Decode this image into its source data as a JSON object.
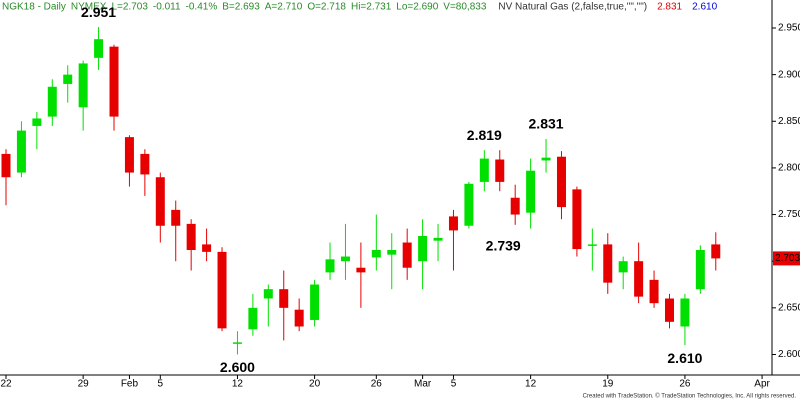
{
  "chart_data": {
    "type": "candlestick",
    "header": [
      "NGK18 - Daily",
      "NYMEX",
      "L=2.703",
      "-0.011",
      "-0.41%",
      "B=2.693",
      "A=2.710",
      "O=2.718",
      "Hi=2.731",
      "Lo=2.690",
      "V=80,833",
      "NV Natural Gas (2,false,true,\"\",\"\")",
      "2.831",
      "2.610"
    ],
    "categories": [
      "22",
      null,
      null,
      null,
      null,
      "29",
      null,
      null,
      "Feb",
      null,
      "5",
      null,
      null,
      null,
      null,
      "12",
      null,
      null,
      null,
      null,
      "20",
      null,
      null,
      null,
      "26",
      null,
      null,
      "Mar",
      null,
      "5",
      null,
      null,
      null,
      null,
      "12",
      null,
      null,
      null,
      null,
      "19",
      null,
      null,
      null,
      null,
      "26",
      null,
      null,
      null,
      null,
      "Apr"
    ],
    "open": [
      2.815,
      2.795,
      2.845,
      2.855,
      2.89,
      2.865,
      2.918,
      2.93,
      2.833,
      2.815,
      2.79,
      2.755,
      2.74,
      2.718,
      2.71,
      2.612,
      2.627,
      2.66,
      2.67,
      2.648,
      2.637,
      2.688,
      2.7,
      2.693,
      2.704,
      2.707,
      2.72,
      2.7,
      2.722,
      2.748,
      2.738,
      2.785,
      2.809,
      2.768,
      2.752,
      2.808,
      2.812,
      2.777,
      2.718,
      2.718,
      2.688,
      2.7,
      2.68,
      2.66,
      2.63,
      2.67,
      2.718,
      null,
      null,
      null
    ],
    "high": [
      2.82,
      2.85,
      2.86,
      2.895,
      2.91,
      2.915,
      2.951,
      2.932,
      2.835,
      2.82,
      2.795,
      2.765,
      2.745,
      2.735,
      2.715,
      2.625,
      2.665,
      2.675,
      2.69,
      2.66,
      2.68,
      2.72,
      2.74,
      2.72,
      2.75,
      2.73,
      2.735,
      2.745,
      2.74,
      2.755,
      2.785,
      2.819,
      2.819,
      2.782,
      2.81,
      2.831,
      2.818,
      2.78,
      2.735,
      2.73,
      2.705,
      2.72,
      2.69,
      2.665,
      2.665,
      2.717,
      2.731,
      null,
      null,
      null
    ],
    "low": [
      2.76,
      2.79,
      2.82,
      2.845,
      2.87,
      2.84,
      2.905,
      2.84,
      2.78,
      2.77,
      2.72,
      2.7,
      2.69,
      2.7,
      2.625,
      2.6,
      2.62,
      2.63,
      2.615,
      2.625,
      2.63,
      2.68,
      2.68,
      2.65,
      2.69,
      2.67,
      2.68,
      2.67,
      2.7,
      2.69,
      2.735,
      2.775,
      2.775,
      2.739,
      2.735,
      2.795,
      2.745,
      2.705,
      2.69,
      2.665,
      2.67,
      2.655,
      2.65,
      2.628,
      2.61,
      2.665,
      2.69,
      null,
      null,
      null
    ],
    "close": [
      2.79,
      2.84,
      2.853,
      2.887,
      2.9,
      2.912,
      2.938,
      2.855,
      2.795,
      2.793,
      2.738,
      2.738,
      2.712,
      2.71,
      2.628,
      2.613,
      2.65,
      2.67,
      2.65,
      2.63,
      2.675,
      2.702,
      2.705,
      2.688,
      2.712,
      2.712,
      2.693,
      2.727,
      2.725,
      2.733,
      2.783,
      2.81,
      2.785,
      2.75,
      2.797,
      2.811,
      2.758,
      2.713,
      2.718,
      2.677,
      2.7,
      2.662,
      2.655,
      2.635,
      2.66,
      2.712,
      2.703,
      null,
      null,
      null
    ],
    "up_color": "#00e000",
    "down_color": "#e60000",
    "annotations": [
      "2.951",
      "2.600",
      "2.819",
      "2.739",
      "2.831",
      "2.610"
    ],
    "last_price": 2.703,
    "ylim": [
      2.578,
      2.98
    ],
    "yticks": [
      {
        "value": 2.6,
        "label": "2.600"
      },
      {
        "value": 2.65,
        "label": "2.650"
      },
      {
        "value": 2.7,
        "label": "2.700"
      },
      {
        "value": 2.75,
        "label": "2.750"
      },
      {
        "value": 2.8,
        "label": "2.800"
      },
      {
        "value": 2.85,
        "label": "2.850"
      },
      {
        "value": 2.9,
        "label": "2.900"
      },
      {
        "value": 2.95,
        "label": "2.950"
      }
    ],
    "footer": "Created with TradeStation. © TradeStation Technologies, Inc. All rights reserved."
  }
}
